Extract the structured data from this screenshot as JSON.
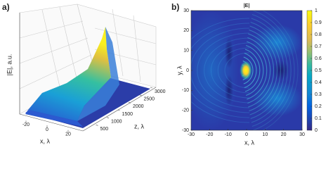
{
  "chart_data": [
    {
      "type": "surface3d",
      "label": "a)",
      "zlabel": "|E|, a.u.",
      "xlabel": "x, λ",
      "ylabel": "z, λ",
      "xlim": [
        -30,
        30
      ],
      "xticks": [
        -20,
        0,
        20
      ],
      "ylim": [
        0,
        3000
      ],
      "yticks": [
        500,
        1000,
        1500,
        2000,
        2500,
        3000
      ]
    },
    {
      "type": "heatmap",
      "label": "b)",
      "title": "|E|",
      "xlabel": "x, λ",
      "ylabel": "y, λ",
      "xlim": [
        -30,
        30
      ],
      "xticks": [
        -30,
        -20,
        -10,
        0,
        10,
        20,
        30
      ],
      "ylim": [
        -30,
        30
      ],
      "yticks": [
        -30,
        -20,
        -10,
        0,
        10,
        20,
        30
      ],
      "clim": [
        0,
        1
      ],
      "cticks": [
        0,
        0.1,
        0.2,
        0.3,
        0.4,
        0.5,
        0.6,
        0.7,
        0.8,
        0.9,
        1
      ]
    }
  ]
}
